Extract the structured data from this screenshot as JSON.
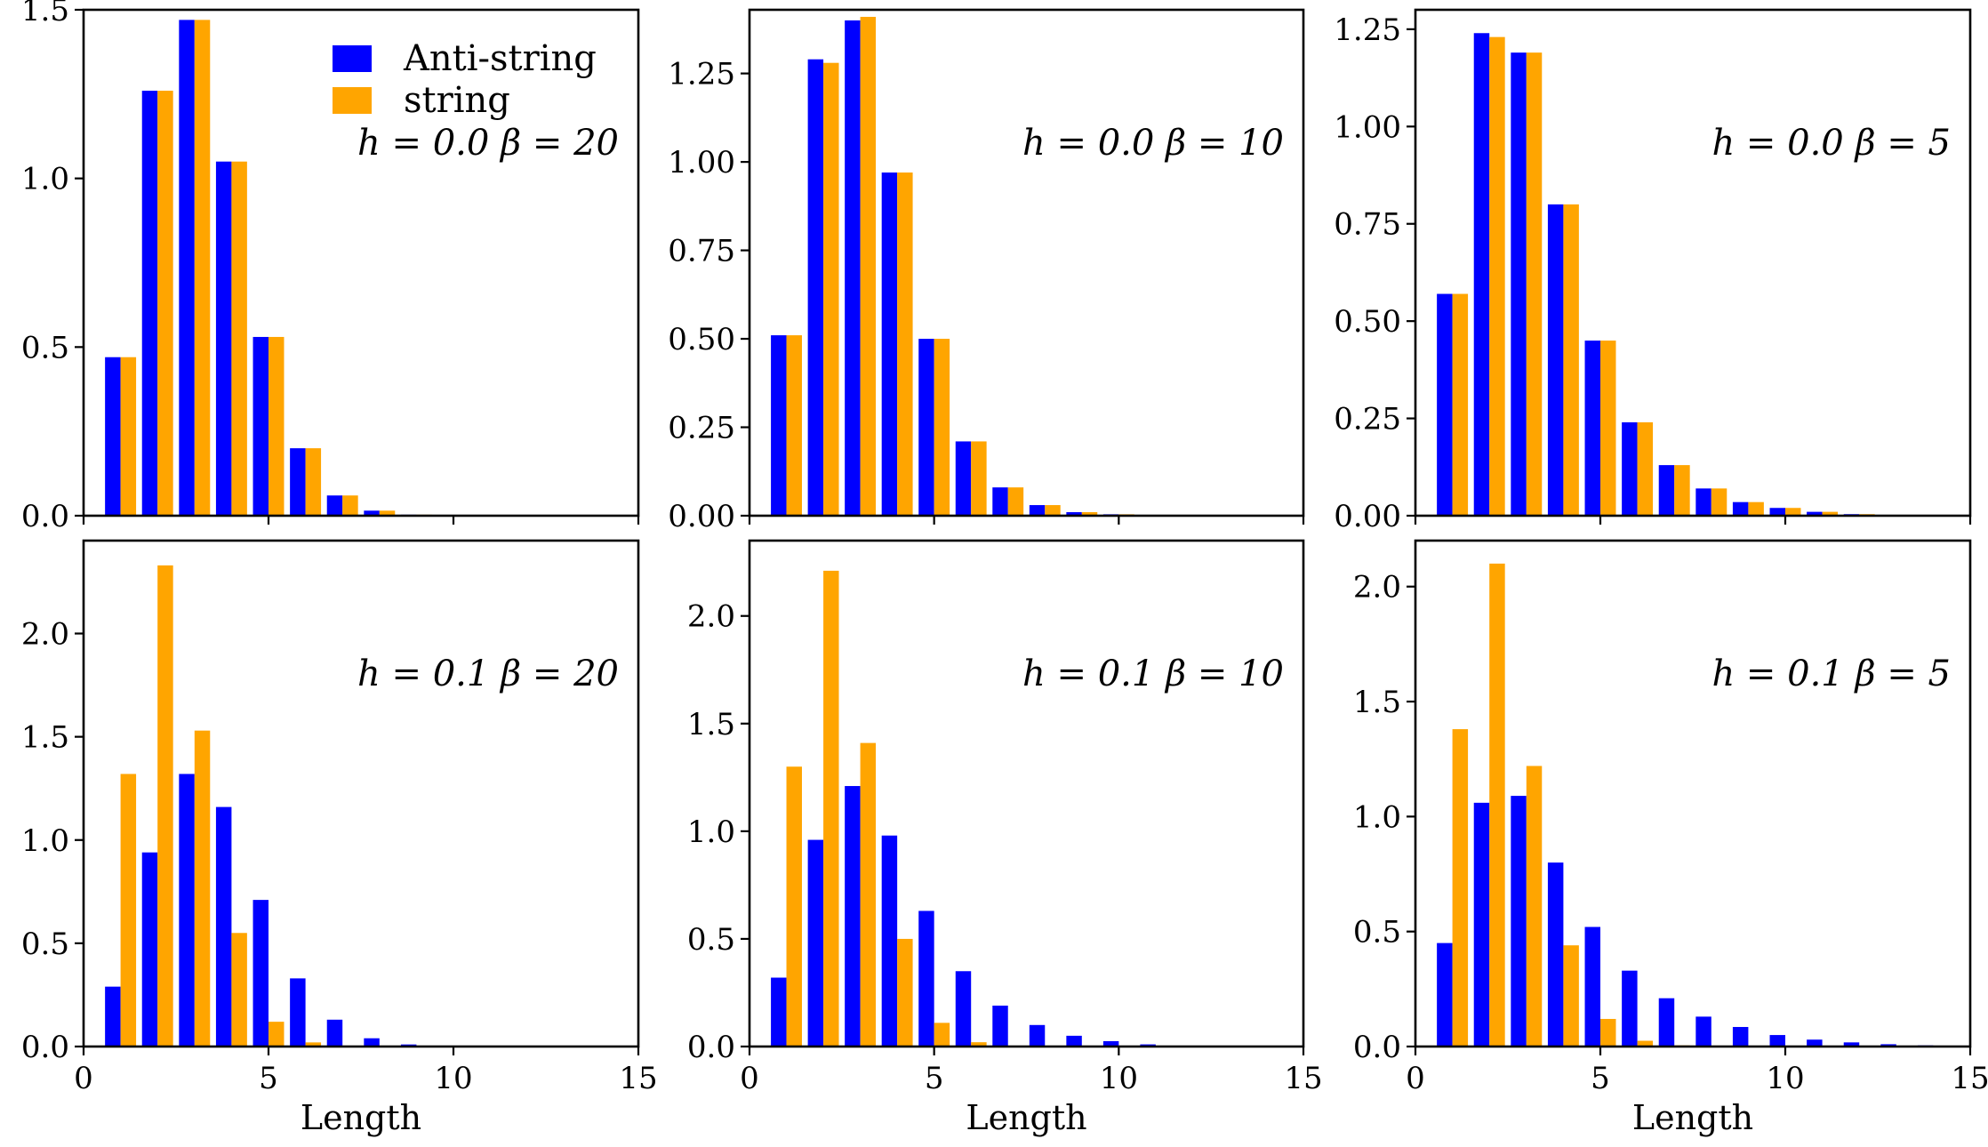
{
  "chart_data": [
    {
      "type": "bar",
      "annotation": "h = 0.0 β = 20",
      "xlabel": "",
      "ylabel": "",
      "xlim": [
        0,
        15
      ],
      "ylim": [
        0,
        1.5
      ],
      "xticks": [
        0,
        5,
        10,
        15
      ],
      "xtick_labels": [],
      "yticks": [
        0.0,
        0.5,
        1.0,
        1.5
      ],
      "ytick_labels": [
        "0.0",
        "0.5",
        "1.0",
        "1.5"
      ],
      "x": [
        1,
        2,
        3,
        4,
        5,
        6,
        7,
        8,
        9
      ],
      "series": [
        {
          "name": "Anti-string",
          "color": "#0000ff",
          "values": [
            0.47,
            1.26,
            1.47,
            1.05,
            0.53,
            0.2,
            0.06,
            0.015,
            0.003
          ]
        },
        {
          "name": "string",
          "color": "#ffa500",
          "values": [
            0.47,
            1.26,
            1.47,
            1.05,
            0.53,
            0.2,
            0.06,
            0.015,
            0.003
          ]
        }
      ],
      "legend": {
        "position": "top-right",
        "entries": [
          "Anti-string",
          "string"
        ]
      }
    },
    {
      "type": "bar",
      "annotation": "h = 0.0 β = 10",
      "xlabel": "",
      "ylabel": "",
      "xlim": [
        0,
        15
      ],
      "ylim": [
        0,
        1.43
      ],
      "xticks": [
        0,
        5,
        10,
        15
      ],
      "xtick_labels": [],
      "yticks": [
        0.0,
        0.25,
        0.5,
        0.75,
        1.0,
        1.25
      ],
      "ytick_labels": [
        "0.00",
        "0.25",
        "0.50",
        "0.75",
        "1.00",
        "1.25"
      ],
      "x": [
        1,
        2,
        3,
        4,
        5,
        6,
        7,
        8,
        9,
        10,
        11
      ],
      "series": [
        {
          "name": "Anti-string",
          "color": "#0000ff",
          "values": [
            0.51,
            1.29,
            1.4,
            0.97,
            0.5,
            0.21,
            0.08,
            0.03,
            0.01,
            0.004,
            0.001
          ]
        },
        {
          "name": "string",
          "color": "#ffa500",
          "values": [
            0.51,
            1.28,
            1.41,
            0.97,
            0.5,
            0.21,
            0.08,
            0.03,
            0.01,
            0.004,
            0.001
          ]
        }
      ]
    },
    {
      "type": "bar",
      "annotation": "h = 0.0 β = 5",
      "xlabel": "",
      "ylabel": "",
      "xlim": [
        0,
        15
      ],
      "ylim": [
        0,
        1.3
      ],
      "xticks": [
        0,
        5,
        10,
        15
      ],
      "xtick_labels": [],
      "yticks": [
        0.0,
        0.25,
        0.5,
        0.75,
        1.0,
        1.25
      ],
      "ytick_labels": [
        "0.00",
        "0.25",
        "0.50",
        "0.75",
        "1.00",
        "1.25"
      ],
      "x": [
        1,
        2,
        3,
        4,
        5,
        6,
        7,
        8,
        9,
        10,
        11,
        12,
        13
      ],
      "series": [
        {
          "name": "Anti-string",
          "color": "#0000ff",
          "values": [
            0.57,
            1.24,
            1.19,
            0.8,
            0.45,
            0.24,
            0.13,
            0.07,
            0.035,
            0.02,
            0.01,
            0.004,
            0.002
          ]
        },
        {
          "name": "string",
          "color": "#ffa500",
          "values": [
            0.57,
            1.23,
            1.19,
            0.8,
            0.45,
            0.24,
            0.13,
            0.07,
            0.035,
            0.02,
            0.01,
            0.004,
            0.002
          ]
        }
      ]
    },
    {
      "type": "bar",
      "annotation": "h = 0.1 β = 20",
      "xlabel": "Length",
      "ylabel": "",
      "xlim": [
        0,
        15
      ],
      "ylim": [
        0,
        2.45
      ],
      "xticks": [
        0,
        5,
        10,
        15
      ],
      "xtick_labels": [
        "0",
        "5",
        "10",
        "15"
      ],
      "yticks": [
        0.0,
        0.5,
        1.0,
        1.5,
        2.0
      ],
      "ytick_labels": [
        "0.0",
        "0.5",
        "1.0",
        "1.5",
        "2.0"
      ],
      "x": [
        1,
        2,
        3,
        4,
        5,
        6,
        7,
        8,
        9
      ],
      "series": [
        {
          "name": "Anti-string",
          "color": "#0000ff",
          "values": [
            0.29,
            0.94,
            1.32,
            1.16,
            0.71,
            0.33,
            0.13,
            0.04,
            0.01
          ]
        },
        {
          "name": "string",
          "color": "#ffa500",
          "values": [
            1.32,
            2.33,
            1.53,
            0.55,
            0.12,
            0.02,
            0.003,
            0.0,
            0.0
          ]
        }
      ]
    },
    {
      "type": "bar",
      "annotation": "h = 0.1 β = 10",
      "xlabel": "Length",
      "ylabel": "",
      "xlim": [
        0,
        15
      ],
      "ylim": [
        0,
        2.35
      ],
      "xticks": [
        0,
        5,
        10,
        15
      ],
      "xtick_labels": [
        "0",
        "5",
        "10",
        "15"
      ],
      "yticks": [
        0.0,
        0.5,
        1.0,
        1.5,
        2.0
      ],
      "ytick_labels": [
        "0.0",
        "0.5",
        "1.0",
        "1.5",
        "2.0"
      ],
      "x": [
        1,
        2,
        3,
        4,
        5,
        6,
        7,
        8,
        9,
        10,
        11
      ],
      "series": [
        {
          "name": "Anti-string",
          "color": "#0000ff",
          "values": [
            0.32,
            0.96,
            1.21,
            0.98,
            0.63,
            0.35,
            0.19,
            0.1,
            0.05,
            0.025,
            0.01
          ]
        },
        {
          "name": "string",
          "color": "#ffa500",
          "values": [
            1.3,
            2.21,
            1.41,
            0.5,
            0.11,
            0.02,
            0.0,
            0.0,
            0.0,
            0.0,
            0.0
          ]
        }
      ]
    },
    {
      "type": "bar",
      "annotation": "h = 0.1 β = 5",
      "xlabel": "Length",
      "ylabel": "",
      "xlim": [
        0,
        15
      ],
      "ylim": [
        0,
        2.2
      ],
      "xticks": [
        0,
        5,
        10,
        15
      ],
      "xtick_labels": [
        "0",
        "5",
        "10",
        "15"
      ],
      "yticks": [
        0.0,
        0.5,
        1.0,
        1.5,
        2.0
      ],
      "ytick_labels": [
        "0.0",
        "0.5",
        "1.0",
        "1.5",
        "2.0"
      ],
      "x": [
        1,
        2,
        3,
        4,
        5,
        6,
        7,
        8,
        9,
        10,
        11,
        12,
        13,
        14
      ],
      "series": [
        {
          "name": "Anti-string",
          "color": "#0000ff",
          "values": [
            0.45,
            1.06,
            1.09,
            0.8,
            0.52,
            0.33,
            0.21,
            0.13,
            0.085,
            0.05,
            0.03,
            0.018,
            0.01,
            0.005
          ]
        },
        {
          "name": "string",
          "color": "#ffa500",
          "values": [
            1.38,
            2.1,
            1.22,
            0.44,
            0.12,
            0.025,
            0.005,
            0.0,
            0.0,
            0.0,
            0.0,
            0.0,
            0.0,
            0.0
          ]
        }
      ]
    }
  ]
}
